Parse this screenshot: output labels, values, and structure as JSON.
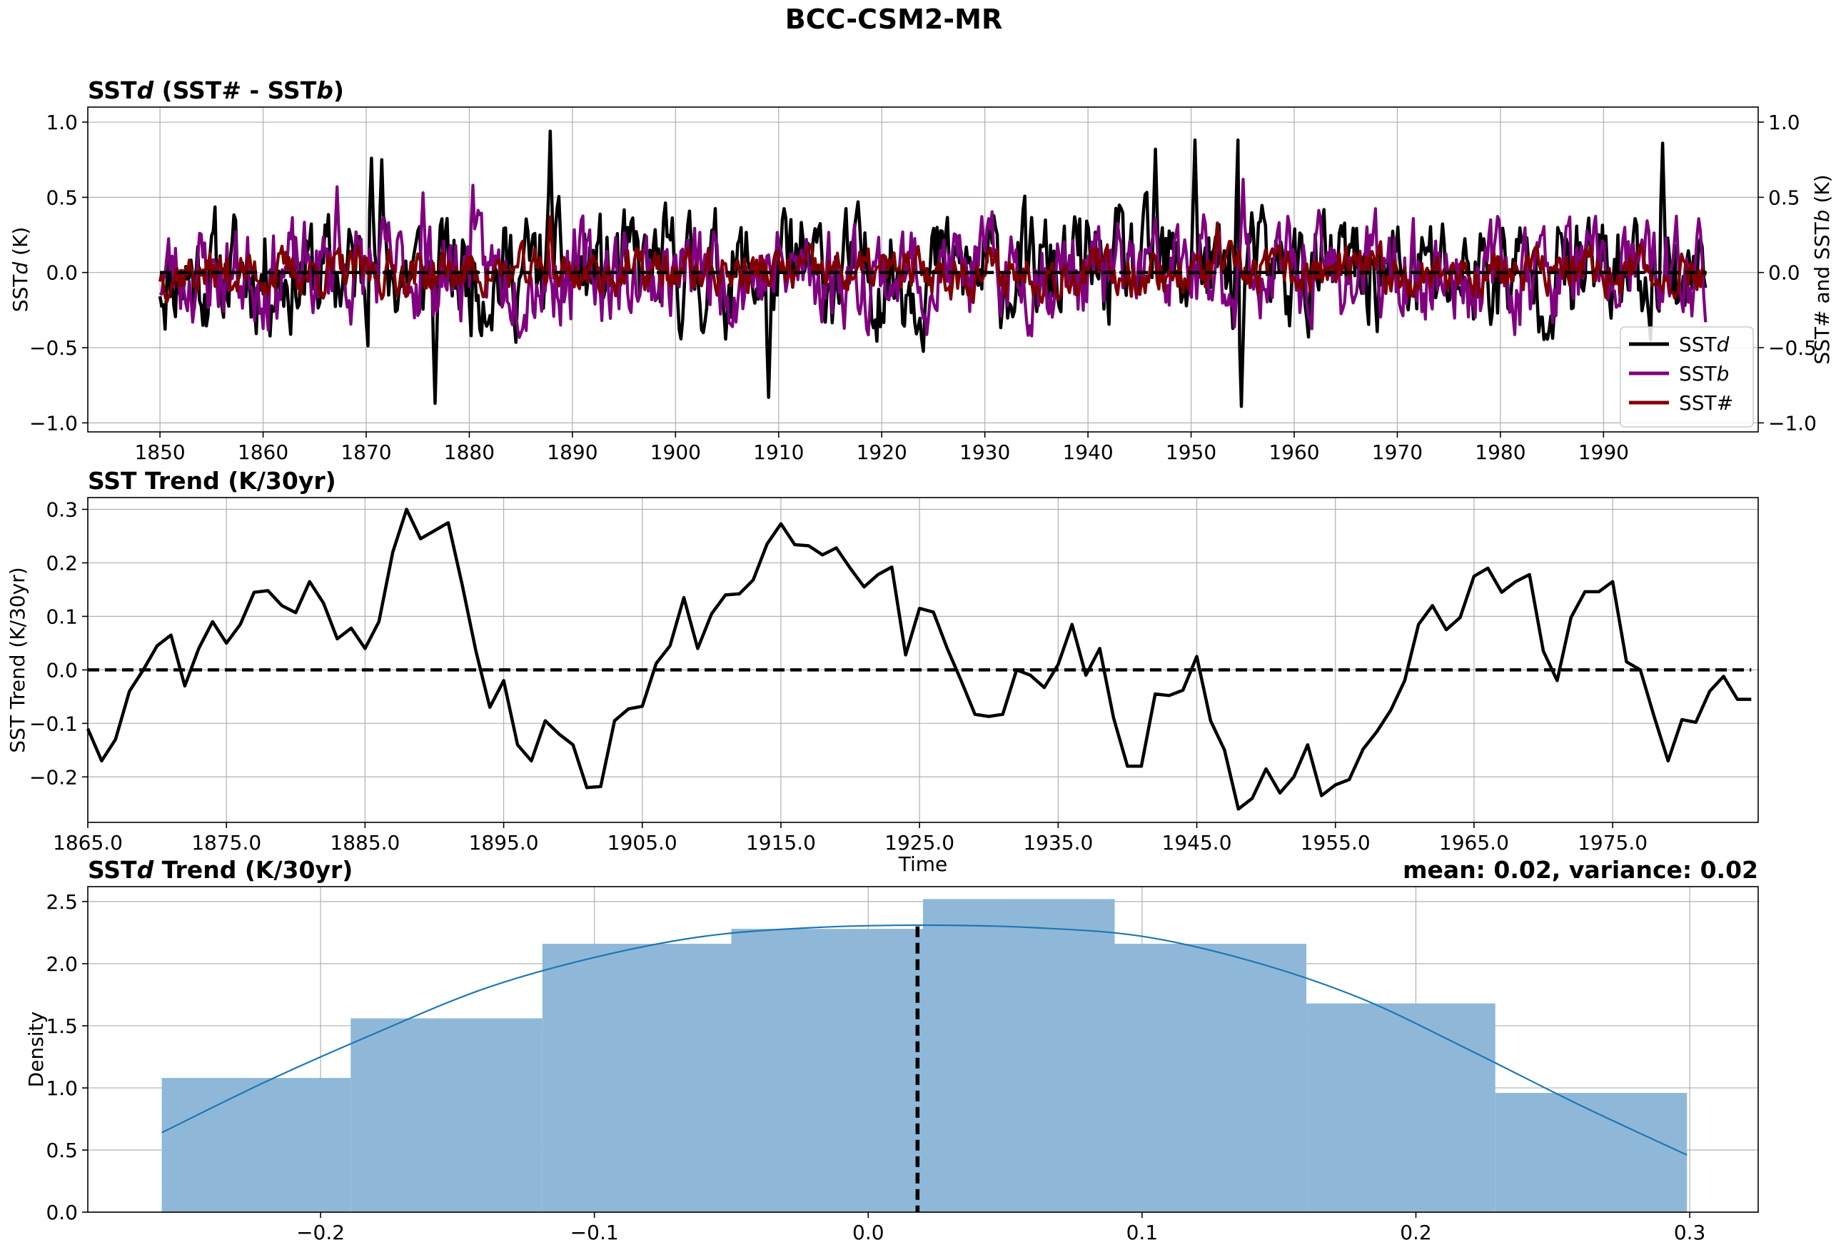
{
  "figure_title": "BCC-CSM2-MR",
  "chart_data": [
    {
      "type": "line",
      "title_parts": [
        {
          "t": "SST",
          "i": false
        },
        {
          "t": "d",
          "i": true
        },
        {
          "t": " (SST# - SST",
          "i": false
        },
        {
          "t": "b",
          "i": true
        },
        {
          "t": ")",
          "i": false
        }
      ],
      "ylabel_left_parts": [
        {
          "t": "SST",
          "i": false
        },
        {
          "t": "d",
          "i": true
        },
        {
          "t": " (K)",
          "i": false
        }
      ],
      "ylabel_right_parts": [
        {
          "t": "SST# and SST",
          "i": false
        },
        {
          "t": "b",
          "i": true
        },
        {
          "t": " (K)",
          "i": false
        }
      ],
      "xlim": [
        1843,
        2005
      ],
      "ylim": [
        -1.06,
        1.1
      ],
      "x_ticks": [
        1850,
        1860,
        1870,
        1880,
        1890,
        1900,
        1910,
        1920,
        1930,
        1940,
        1950,
        1960,
        1970,
        1980,
        1990
      ],
      "x_tick_labels": [
        "1850",
        "1860",
        "1870",
        "1880",
        "1890",
        "1900",
        "1910",
        "1920",
        "1930",
        "1940",
        "1950",
        "1960",
        "1970",
        "1980",
        "1990"
      ],
      "y_ticks": [
        -1.0,
        -0.5,
        0.0,
        0.5,
        1.0
      ],
      "y_tick_labels": [
        "−1.0",
        "−0.5",
        "0.0",
        "0.5",
        "1.0"
      ],
      "grid": true,
      "legend_position": "bottom-right",
      "series": [
        {
          "name_parts": [
            {
              "t": "SST",
              "i": false
            },
            {
              "t": "d",
              "i": true
            }
          ],
          "color": "#000000",
          "amplitude": 0.34,
          "peaks": [
            [
              1870.5,
              0.76
            ],
            [
              1871.5,
              0.75
            ],
            [
              1876.6,
              -0.87
            ],
            [
              1887.9,
              0.94
            ],
            [
              1909.1,
              -0.83
            ],
            [
              1946.6,
              0.82
            ],
            [
              1950.4,
              0.88
            ],
            [
              1954.5,
              0.88
            ],
            [
              1954.8,
              -0.89
            ],
            [
              1995.7,
              0.86
            ]
          ]
        },
        {
          "name_parts": [
            {
              "t": "SST",
              "i": false
            },
            {
              "t": "b",
              "i": true
            }
          ],
          "color": "#800080",
          "amplitude": 0.27,
          "peaks": [
            [
              1867.1,
              0.57
            ],
            [
              1875.5,
              0.53
            ],
            [
              1880.3,
              0.58
            ],
            [
              1955.0,
              0.62
            ]
          ]
        },
        {
          "name_parts": [
            {
              "t": "SST#",
              "i": false
            }
          ],
          "color": "#800000",
          "amplitude": 0.13,
          "peaks": [
            [
              1887.9,
              0.37
            ],
            [
              1952.5,
              0.33
            ]
          ]
        }
      ],
      "zero_line": {
        "y": 0.0,
        "style": "dashed",
        "color": "#000000"
      }
    },
    {
      "type": "line",
      "title": "SST Trend (K/30yr)",
      "xlabel": "Time",
      "ylabel": "SST Trend (K/30yr)",
      "xlim": [
        1865,
        1985.5
      ],
      "ylim": [
        -0.285,
        0.322
      ],
      "x_ticks": [
        1865,
        1875,
        1885,
        1895,
        1905,
        1915,
        1925,
        1935,
        1945,
        1955,
        1965,
        1975
      ],
      "x_tick_labels": [
        "1865.0",
        "1875.0",
        "1885.0",
        "1895.0",
        "1905.0",
        "1915.0",
        "1925.0",
        "1935.0",
        "1945.0",
        "1955.0",
        "1965.0",
        "1975.0"
      ],
      "y_ticks": [
        -0.2,
        -0.1,
        0.0,
        0.1,
        0.2,
        0.3
      ],
      "y_tick_labels": [
        "−0.2",
        "−0.1",
        "0.0",
        "0.1",
        "0.2",
        "0.3"
      ],
      "grid": true,
      "x": [
        1865,
        1866,
        1867,
        1868,
        1869,
        1870,
        1871,
        1872,
        1873,
        1874,
        1875,
        1876,
        1877,
        1878,
        1879,
        1880,
        1881,
        1882,
        1883,
        1884,
        1885,
        1886,
        1887,
        1888,
        1889,
        1890,
        1891,
        1892,
        1893,
        1894,
        1895,
        1896,
        1897,
        1898,
        1899,
        1900,
        1901,
        1902,
        1903,
        1904,
        1905,
        1906,
        1907,
        1908,
        1909,
        1910,
        1911,
        1912,
        1913,
        1914,
        1915,
        1916,
        1917,
        1918,
        1919,
        1920,
        1921,
        1922,
        1923,
        1924,
        1925,
        1926,
        1927,
        1928,
        1929,
        1930,
        1931,
        1932,
        1933,
        1934,
        1935,
        1936,
        1937,
        1938,
        1939,
        1940,
        1941,
        1942,
        1943,
        1944,
        1945,
        1946,
        1947,
        1948,
        1949,
        1950,
        1951,
        1952,
        1953,
        1954,
        1955,
        1956,
        1957,
        1958,
        1959,
        1960,
        1961,
        1962,
        1963,
        1964,
        1965,
        1966,
        1967,
        1968,
        1969,
        1970,
        1971,
        1972,
        1973,
        1974,
        1975,
        1976,
        1977,
        1978,
        1979,
        1980,
        1981,
        1982,
        1983,
        1984,
        1985
      ],
      "y": [
        -0.11,
        -0.17,
        -0.13,
        -0.04,
        0.0,
        0.045,
        0.065,
        -0.03,
        0.04,
        0.09,
        0.05,
        0.085,
        0.145,
        0.148,
        0.12,
        0.107,
        0.165,
        0.125,
        0.058,
        0.078,
        0.04,
        0.09,
        0.22,
        0.3,
        0.245,
        0.26,
        0.275,
        0.16,
        0.035,
        -0.07,
        -0.02,
        -0.14,
        -0.17,
        -0.095,
        -0.12,
        -0.14,
        -0.22,
        -0.218,
        -0.095,
        -0.073,
        -0.068,
        0.012,
        0.045,
        0.135,
        0.04,
        0.105,
        0.14,
        0.142,
        0.168,
        0.235,
        0.273,
        0.234,
        0.232,
        0.215,
        0.228,
        0.19,
        0.155,
        0.178,
        0.192,
        0.028,
        0.115,
        0.108,
        0.04,
        -0.02,
        -0.083,
        -0.087,
        -0.083,
        0.0,
        -0.01,
        -0.033,
        0.01,
        0.085,
        -0.01,
        0.04,
        -0.09,
        -0.18,
        -0.18,
        -0.045,
        -0.048,
        -0.038,
        0.025,
        -0.095,
        -0.15,
        -0.26,
        -0.24,
        -0.185,
        -0.23,
        -0.2,
        -0.14,
        -0.235,
        -0.215,
        -0.205,
        -0.148,
        -0.115,
        -0.075,
        -0.02,
        0.085,
        0.12,
        0.075,
        0.098,
        0.175,
        0.19,
        0.145,
        0.165,
        0.178,
        0.035,
        -0.02,
        0.098,
        0.146,
        0.146,
        0.165,
        0.015,
        0.0,
        -0.088,
        -0.17,
        -0.093,
        -0.098,
        -0.04,
        -0.012,
        -0.055,
        -0.055
      ],
      "zero_line": {
        "y": 0.0,
        "style": "dashed",
        "color": "#000000"
      },
      "color": "#000000"
    },
    {
      "type": "histogram",
      "title_parts": [
        {
          "t": "SST",
          "i": false
        },
        {
          "t": "d",
          "i": true
        },
        {
          "t": " Trend (K/30yr)",
          "i": false
        }
      ],
      "annotation": "mean: 0.02, variance: 0.02",
      "ylabel": "Density",
      "xlim": [
        -0.285,
        0.325
      ],
      "ylim": [
        0.0,
        2.62
      ],
      "x_ticks": [
        -0.2,
        -0.1,
        0.0,
        0.1,
        0.2,
        0.3
      ],
      "x_tick_labels": [
        "−0.2",
        "−0.1",
        "0.0",
        "0.1",
        "0.2",
        "0.3"
      ],
      "y_ticks": [
        0.0,
        0.5,
        1.0,
        1.5,
        2.0,
        2.5
      ],
      "y_tick_labels": [
        "0.0",
        "0.5",
        "1.0",
        "1.5",
        "2.0",
        "2.5"
      ],
      "grid": true,
      "bin_edges": [
        -0.258,
        -0.189,
        -0.119,
        -0.05,
        0.02,
        0.09,
        0.16,
        0.229,
        0.299
      ],
      "densities": [
        1.08,
        1.56,
        2.16,
        2.28,
        2.52,
        2.16,
        1.68,
        0.96
      ],
      "bar_color": "#8fb8d8",
      "kde": {
        "color": "#1f77b4",
        "x": [
          -0.258,
          -0.22,
          -0.18,
          -0.14,
          -0.1,
          -0.06,
          -0.02,
          0.02,
          0.06,
          0.1,
          0.14,
          0.18,
          0.22,
          0.26,
          0.299
        ],
        "y": [
          0.64,
          1.05,
          1.44,
          1.8,
          2.05,
          2.22,
          2.29,
          2.31,
          2.29,
          2.22,
          2.02,
          1.72,
          1.3,
          0.86,
          0.46
        ]
      },
      "mean_line": {
        "x": 0.018,
        "style": "dashed",
        "color": "#000000"
      }
    }
  ]
}
